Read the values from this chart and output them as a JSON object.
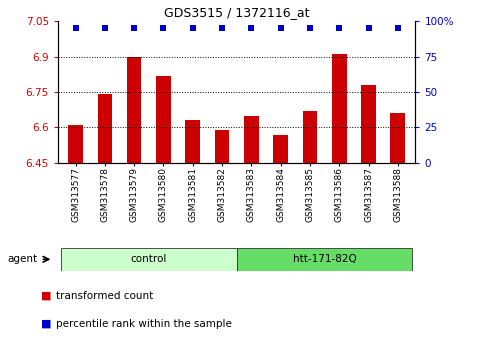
{
  "title": "GDS3515 / 1372116_at",
  "categories": [
    "GSM313577",
    "GSM313578",
    "GSM313579",
    "GSM313580",
    "GSM313581",
    "GSM313582",
    "GSM313583",
    "GSM313584",
    "GSM313585",
    "GSM313586",
    "GSM313587",
    "GSM313588"
  ],
  "bar_values": [
    6.61,
    6.74,
    6.9,
    6.82,
    6.63,
    6.59,
    6.65,
    6.57,
    6.67,
    6.91,
    6.78,
    6.66
  ],
  "percentile_values": [
    95,
    95,
    95,
    95,
    95,
    95,
    95,
    95,
    95,
    95,
    95,
    95
  ],
  "bar_color": "#cc0000",
  "percentile_color": "#0000cc",
  "ylim_left": [
    6.45,
    7.05
  ],
  "ylim_right": [
    0,
    100
  ],
  "yticks_left": [
    6.45,
    6.6,
    6.75,
    6.9,
    7.05
  ],
  "yticks_right": [
    0,
    25,
    50,
    75,
    100
  ],
  "ytick_labels_left": [
    "6.45",
    "6.6",
    "6.75",
    "6.9",
    "7.05"
  ],
  "ytick_labels_right": [
    "0",
    "25",
    "50",
    "75",
    "100%"
  ],
  "hlines": [
    6.6,
    6.75,
    6.9
  ],
  "group_labels": [
    "control",
    "htt-171-82Q"
  ],
  "group_ranges": [
    [
      0,
      5
    ],
    [
      6,
      11
    ]
  ],
  "group_colors": [
    "#ccffcc",
    "#66dd66"
  ],
  "agent_label": "agent",
  "legend_items": [
    "transformed count",
    "percentile rank within the sample"
  ],
  "legend_colors": [
    "#cc0000",
    "#0000cc"
  ],
  "bar_width": 0.5,
  "background_color": "#ffffff"
}
